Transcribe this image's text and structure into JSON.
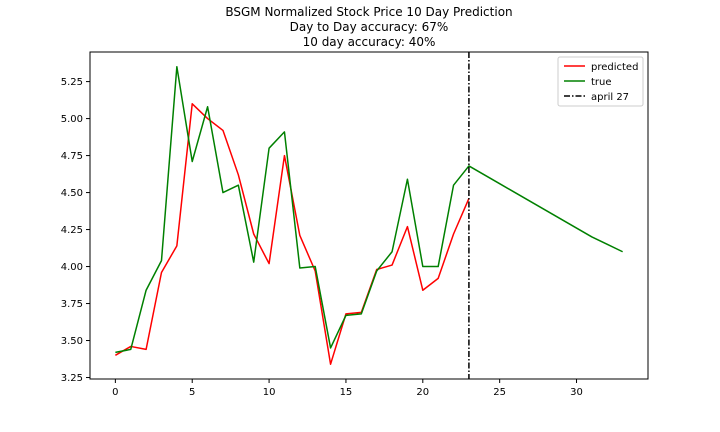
{
  "chart_data": {
    "type": "line",
    "title_lines": [
      "BSGM Normalized Stock Price 10 Day Prediction",
      "Day to Day accuracy: 67%",
      "10 day accuracy: 40%"
    ],
    "xlim": [
      -1.65,
      34.65
    ],
    "ylim": [
      3.24,
      5.45
    ],
    "x_ticks": [
      0,
      5,
      10,
      15,
      20,
      25,
      30
    ],
    "y_ticks": [
      3.25,
      3.5,
      3.75,
      4.0,
      4.25,
      4.5,
      4.75,
      5.0,
      5.25
    ],
    "y_tick_labels": [
      "3.25",
      "3.50",
      "3.75",
      "4.00",
      "4.25",
      "4.50",
      "4.75",
      "5.00",
      "5.25"
    ],
    "series": [
      {
        "name": "predicted",
        "color": "#ff0000",
        "x": [
          0,
          1,
          2,
          3,
          4,
          5,
          6,
          7,
          8,
          9,
          10,
          11,
          12,
          13,
          14,
          15,
          16,
          17,
          18,
          19,
          20,
          21,
          22,
          23
        ],
        "values": [
          3.4,
          3.46,
          3.44,
          3.96,
          4.14,
          5.1,
          5.0,
          4.92,
          4.62,
          4.22,
          4.02,
          4.75,
          4.21,
          3.97,
          3.34,
          3.68,
          3.69,
          3.98,
          4.01,
          4.27,
          3.84,
          3.92,
          4.22,
          4.46
        ]
      },
      {
        "name": "true",
        "color": "#008000",
        "x": [
          0,
          1,
          2,
          3,
          4,
          5,
          6,
          7,
          8,
          9,
          10,
          11,
          12,
          13,
          14,
          15,
          16,
          17,
          18,
          19,
          20,
          21,
          22,
          23,
          24,
          25,
          26,
          27,
          28,
          29,
          30,
          31,
          32,
          33
        ],
        "values": [
          3.42,
          3.44,
          3.84,
          4.04,
          5.35,
          4.71,
          5.08,
          4.5,
          4.55,
          4.03,
          4.8,
          4.91,
          3.99,
          4.0,
          3.45,
          3.67,
          3.68,
          3.97,
          4.1,
          4.59,
          4.0,
          4.0,
          4.55,
          4.68,
          4.62,
          4.56,
          4.5,
          4.44,
          4.38,
          4.32,
          4.26,
          4.2,
          4.15,
          4.1
        ]
      }
    ],
    "vline": {
      "name": "april 27",
      "x": 23,
      "color": "#000000",
      "style": "dash-dot"
    },
    "legend_position": "top-right",
    "grid": false
  }
}
